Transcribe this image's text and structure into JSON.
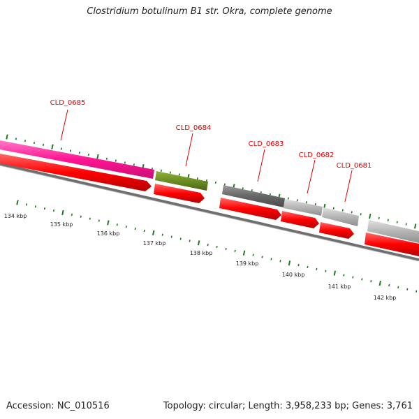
{
  "title": "Clostridium botulinum B1 str. Okra, complete genome",
  "footer": {
    "accession": "Accession: NC_010516",
    "summary": "Topology: circular; Length: 3,958,233 bp; Genes: 3,761"
  },
  "scale": {
    "labels": [
      "134 kbp",
      "135 kbp",
      "136 kbp",
      "137 kbp",
      "138 kbp",
      "139 kbp",
      "140 kbp",
      "141 kbp",
      "142 kbp"
    ]
  },
  "genes": [
    {
      "id": "CLD_0685",
      "strand": "minus",
      "color": "#ff2a9c"
    },
    {
      "id": "CLD_0684",
      "strand": "minus",
      "color": "#6b8e23"
    },
    {
      "id": "CLD_0683",
      "strand": "minus",
      "color": "#6e6e6e"
    },
    {
      "id": "CLD_0682",
      "strand": "minus",
      "color": "#b5b5b5"
    },
    {
      "id": "CLD_0681",
      "strand": "minus",
      "color": "#bdbdbd"
    }
  ],
  "colors": {
    "label": "#dd0000",
    "tick": "#1e7a1e",
    "cds": "#ff0000",
    "backbone": "#7d7d7d"
  }
}
